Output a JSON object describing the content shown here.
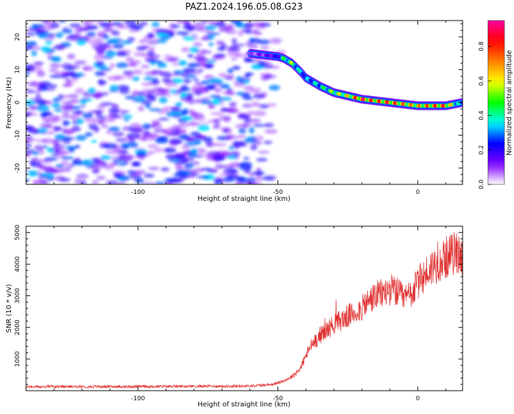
{
  "title": "PAZ1.2024.196.05.08.G23",
  "chart_data": [
    {
      "type": "heatmap",
      "xlabel": "Height of straight line (km)",
      "ylabel": "Frequency (Hz)",
      "xlim": [
        -140,
        16
      ],
      "ylim": [
        -25,
        25
      ],
      "xticks": [
        -100,
        -50,
        0
      ],
      "yticks": [
        -20,
        -10,
        0,
        10,
        20
      ],
      "noise_region_x": [
        -140,
        -48
      ],
      "noise_region_y": [
        -25,
        25
      ],
      "ridge": {
        "x": [
          -60,
          -55,
          -50,
          -48,
          -45,
          -42,
          -40,
          -35,
          -30,
          -25,
          -20,
          -15,
          -10,
          -5,
          0,
          5,
          10,
          16
        ],
        "y": [
          15,
          14.5,
          14,
          13.5,
          12,
          9.5,
          7.5,
          5,
          3,
          2,
          1,
          0.5,
          0,
          -0.5,
          -1,
          -1,
          -1,
          0
        ],
        "amplitude": [
          0.1,
          0.15,
          0.25,
          0.5,
          0.6,
          0.4,
          0.35,
          0.45,
          0.6,
          0.7,
          0.95,
          0.85,
          0.9,
          0.8,
          0.75,
          0.85,
          0.9,
          0.3
        ]
      },
      "grid": false,
      "colorbar": {
        "label": "Normalized spectral amplitude",
        "ticks": [
          "0.0",
          "0.2",
          "0.4",
          "0.6",
          "0.8"
        ],
        "range": [
          0,
          0.95
        ],
        "colors": [
          "#ffffff",
          "#8000ff",
          "#0000ff",
          "#00ffff",
          "#00ff00",
          "#ffff00",
          "#ff8000",
          "#ff0000",
          "#ff00a0"
        ]
      }
    },
    {
      "type": "line",
      "xlabel": "Height of straight line (km)",
      "ylabel": "SNR (10 * v/v)",
      "xlim": [
        -140,
        16
      ],
      "ylim": [
        0,
        5200
      ],
      "xticks": [
        -100,
        -50,
        0
      ],
      "yticks": [
        1000,
        2000,
        3000,
        4000,
        5000
      ],
      "grid": false,
      "series": [
        {
          "color": "#e03030",
          "x": [
            -140,
            -120,
            -100,
            -80,
            -60,
            -52,
            -48,
            -45,
            -42,
            -40,
            -38,
            -35,
            -32,
            -30,
            -28,
            -25,
            -22,
            -20,
            -18,
            -15,
            -12,
            -10,
            -8,
            -5,
            -2,
            0,
            2,
            5,
            8,
            10,
            12,
            14,
            16
          ],
          "y": [
            120,
            130,
            130,
            140,
            150,
            200,
            300,
            450,
            700,
            1100,
            1450,
            1750,
            1950,
            2100,
            2200,
            2350,
            2500,
            2600,
            2800,
            3000,
            3100,
            3200,
            3150,
            2900,
            3100,
            3400,
            3600,
            3900,
            4100,
            4200,
            4300,
            4400,
            4200
          ]
        }
      ]
    }
  ]
}
